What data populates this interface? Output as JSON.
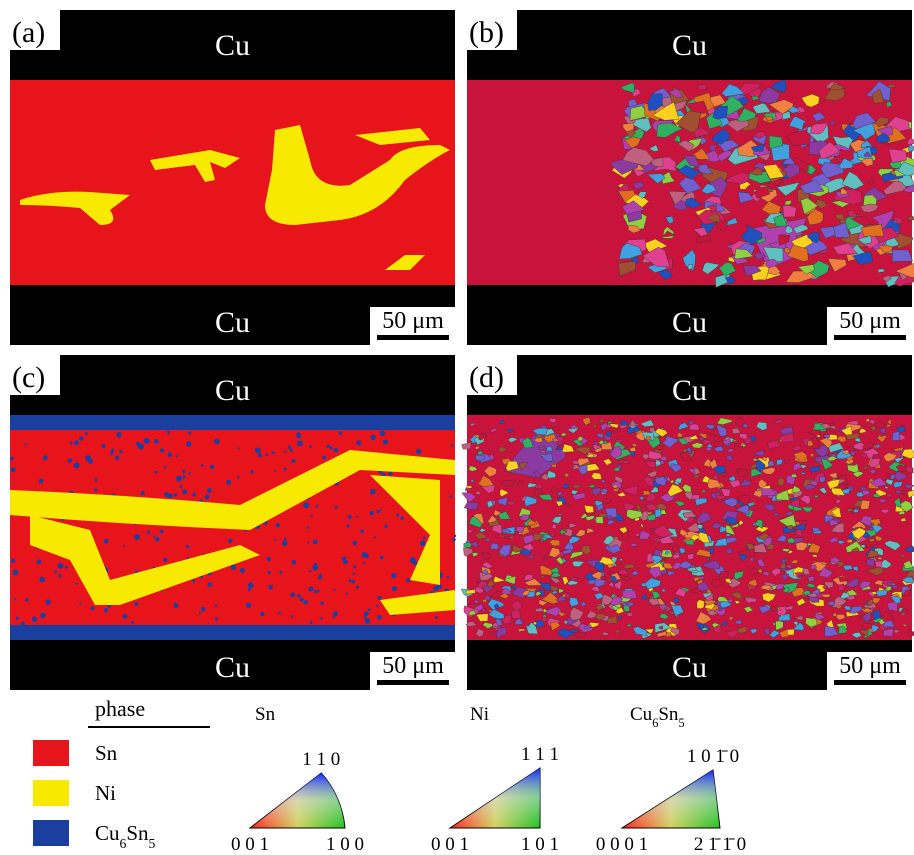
{
  "panels": [
    {
      "label": "(a)",
      "top": "Cu",
      "bottom": "Cu",
      "scale_bar": "50 μm"
    },
    {
      "label": "(b)",
      "top": "Cu",
      "bottom": "Cu",
      "scale_bar": "50 μm"
    },
    {
      "label": "(c)",
      "top": "Cu",
      "bottom": "Cu",
      "scale_bar": "50 μm"
    },
    {
      "label": "(d)",
      "top": "Cu",
      "bottom": "Cu",
      "scale_bar": "50 μm"
    }
  ],
  "legend": {
    "title": "phase",
    "items": [
      {
        "name": [
          "Sn"
        ],
        "color": "#e8141c"
      },
      {
        "name": [
          "Ni"
        ],
        "color": "#f7ea00"
      },
      {
        "name": [
          "Cu",
          "6",
          "Sn",
          "5"
        ],
        "color": "#1b3f9e"
      }
    ]
  },
  "ipf": [
    {
      "phase": [
        "Sn"
      ],
      "top": "1 1 0",
      "left": "0 0 1",
      "right": "1 0 0"
    },
    {
      "phase": [
        "Ni"
      ],
      "top": "1 1 1",
      "left": "0 0 1",
      "right": "1 0 1"
    },
    {
      "phase": [
        "Cu",
        "6",
        "Sn",
        "5"
      ],
      "top": "1 0 1̄ 0",
      "left": "0 0 0 1",
      "right": "2 1̄ 1̄ 0"
    }
  ]
}
